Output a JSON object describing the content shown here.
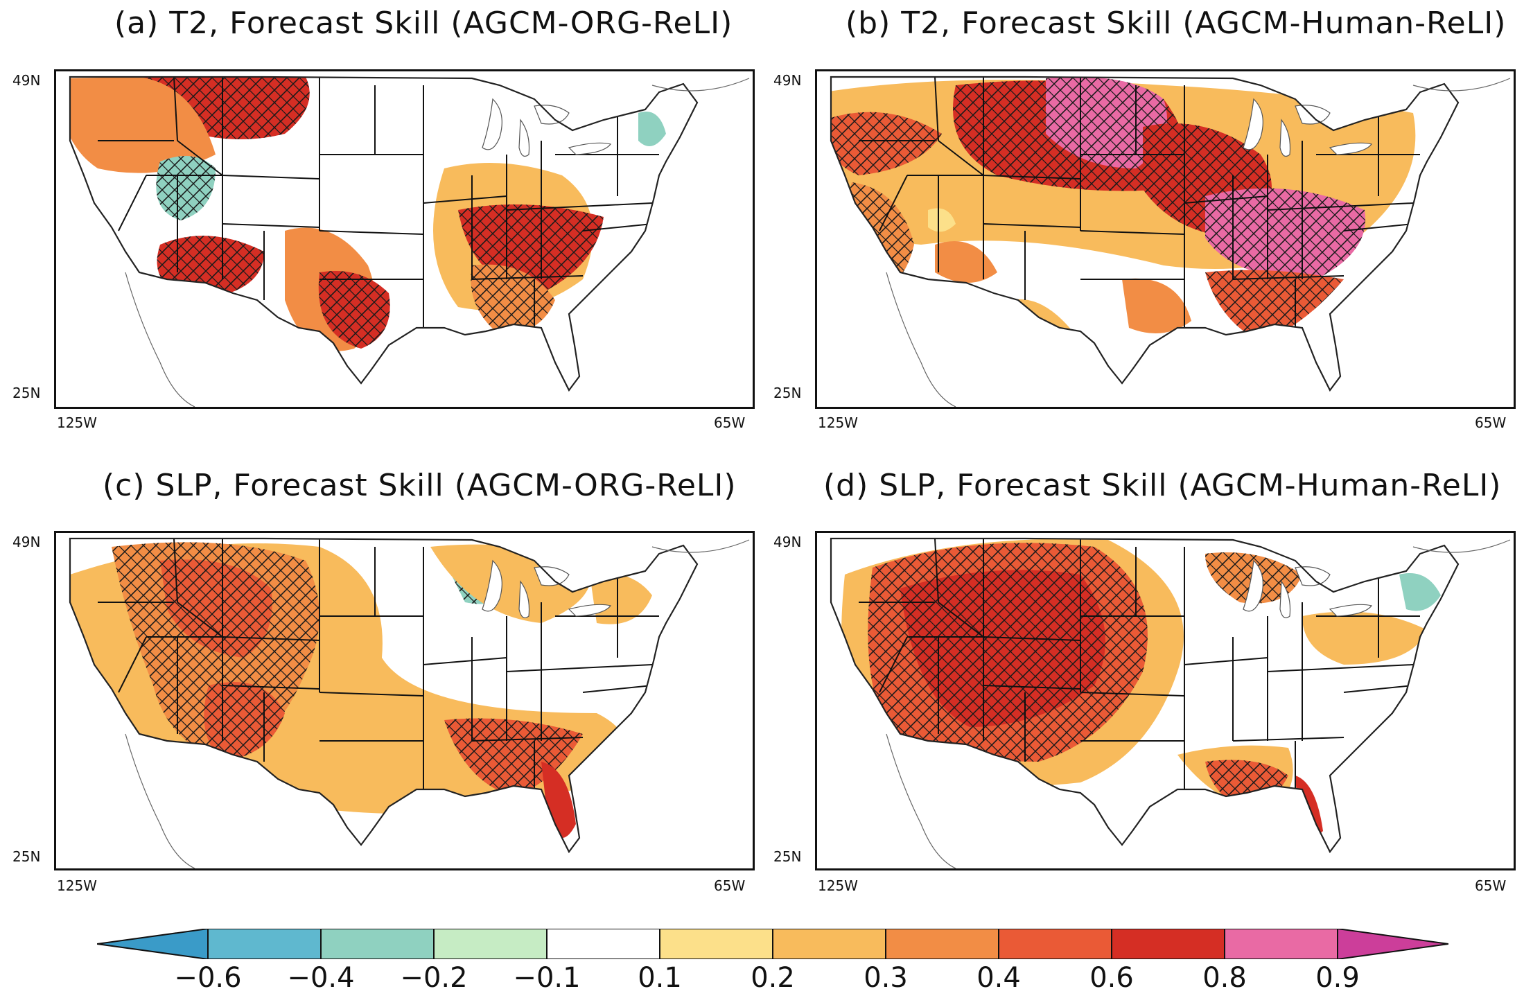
{
  "panels": [
    {
      "id": "a",
      "title": "(a) T2, Forecast Skill (AGCM-ORG-ReLI)"
    },
    {
      "id": "b",
      "title": "(b) T2, Forecast Skill (AGCM-Human-ReLI)"
    },
    {
      "id": "c",
      "title": "(c) SLP, Forecast Skill (AGCM-ORG-ReLI)"
    },
    {
      "id": "d",
      "title": "(d) SLP, Forecast Skill (AGCM-Human-ReLI)"
    }
  ],
  "axes": {
    "lat_top": "49N",
    "lat_bottom": "25N",
    "lon_left": "125W",
    "lon_right": "65W"
  },
  "colorbar": {
    "ticks": [
      "−0.6",
      "−0.4",
      "−0.2",
      "−0.1",
      "0.1",
      "0.2",
      "0.3",
      "0.4",
      "0.6",
      "0.8",
      "0.9"
    ],
    "colors": [
      "#3a9bc8",
      "#5fb8cf",
      "#8fd1c0",
      "#c6ecc4",
      "#ffffff",
      "#fce08a",
      "#f8bb5c",
      "#f28d45",
      "#ea5a36",
      "#d52e24",
      "#e96aa4",
      "#cc3e9a"
    ]
  }
}
